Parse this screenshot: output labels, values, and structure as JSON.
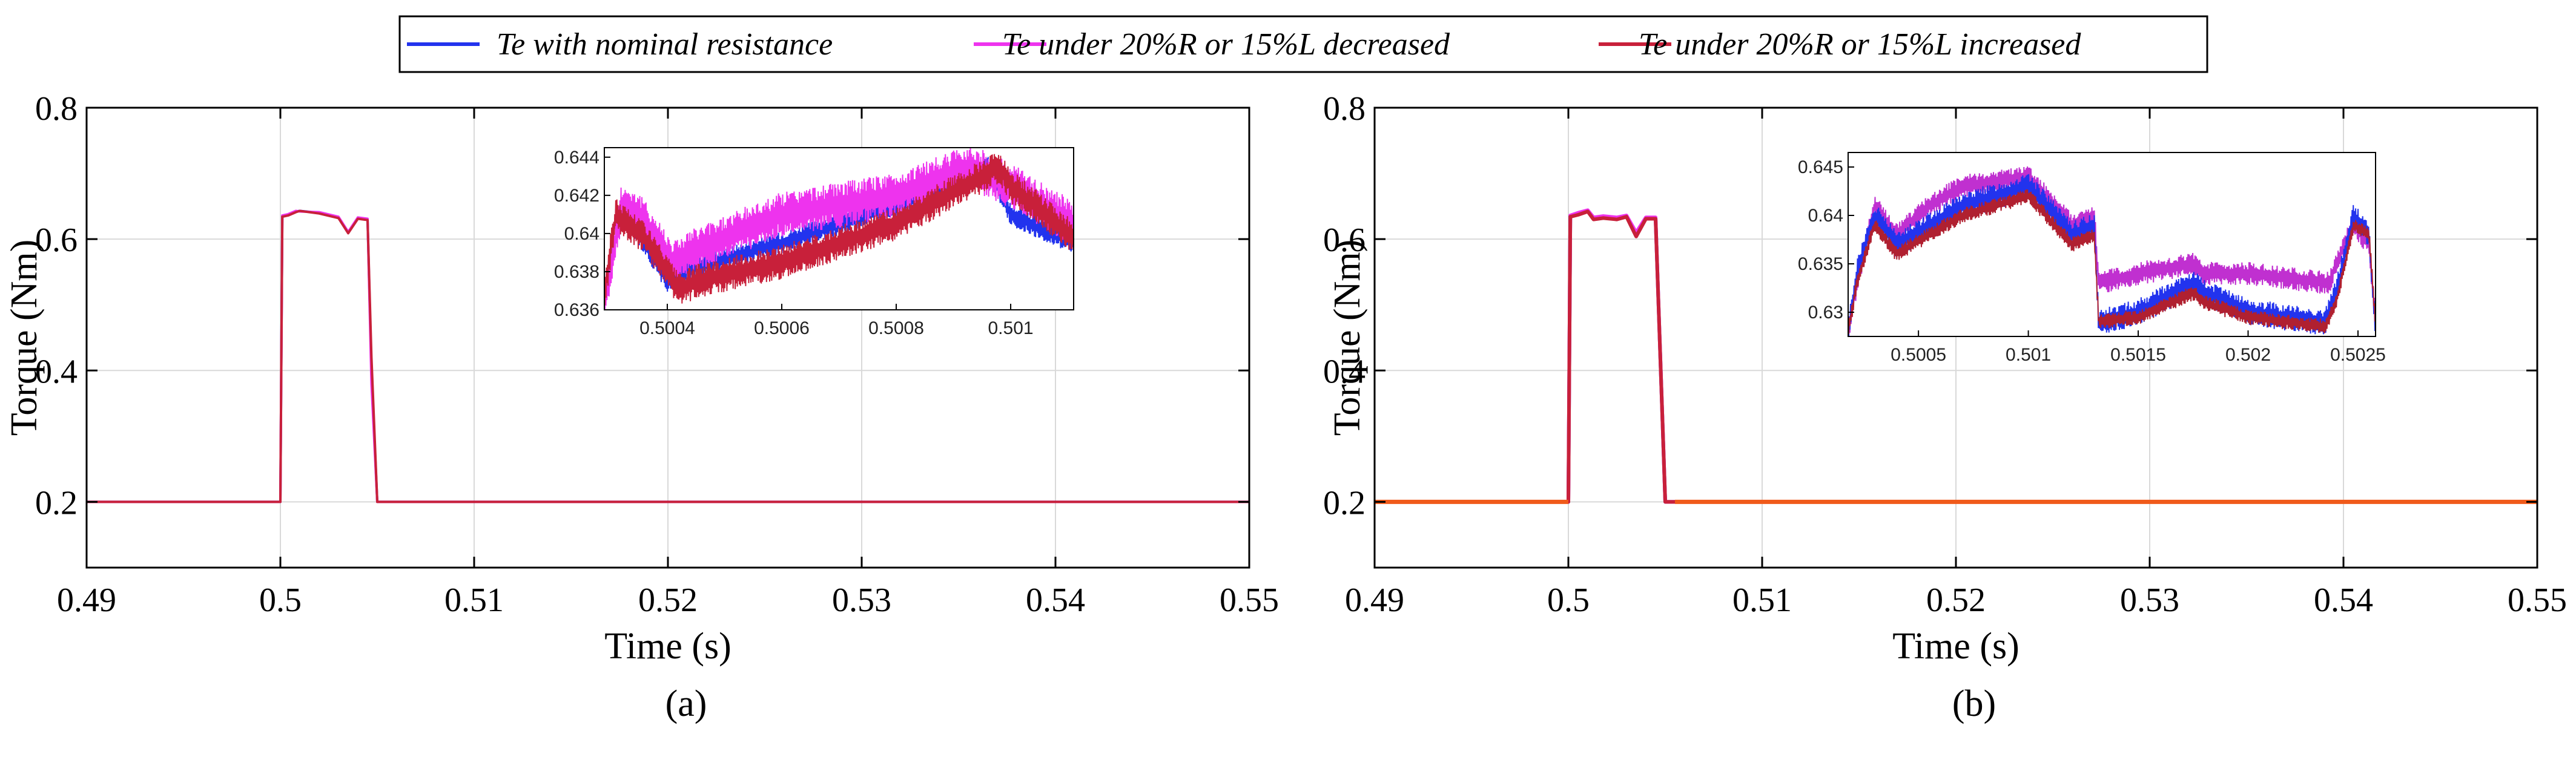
{
  "legend": {
    "items": [
      {
        "label": "Te with nominal resistance",
        "color": "#2233ee"
      },
      {
        "label": "Te under 20%R or 15%L decreased",
        "color": "#ee33ee"
      },
      {
        "label": "Te under 20%R or 15%L increased",
        "color": "#c8203a"
      }
    ]
  },
  "chart_data": [
    {
      "type": "line",
      "caption": "(a)",
      "xlabel": "Time (s)",
      "ylabel": "Torque (Nm)",
      "xlim": [
        0.49,
        0.55
      ],
      "ylim": [
        0.1,
        0.8
      ],
      "xticks": [
        0.49,
        0.5,
        0.51,
        0.52,
        0.53,
        0.54,
        0.55
      ],
      "xtick_labels": [
        "0.49",
        "0.5",
        "0.51",
        "0.52",
        "0.53",
        "0.54",
        "0.55"
      ],
      "yticks": [
        0.2,
        0.4,
        0.6,
        0.8
      ],
      "ytick_labels": [
        "0.2",
        "0.4",
        "0.6",
        "0.8"
      ],
      "grid": true,
      "series": [
        {
          "name": "Te with nominal resistance",
          "color": "#2233ee",
          "x": [
            0.49,
            0.5,
            0.5001,
            0.5004,
            0.5008,
            0.501,
            0.502,
            0.503,
            0.5035,
            0.504,
            0.5045,
            0.5047,
            0.505,
            0.55
          ],
          "y": [
            0.2,
            0.2,
            0.635,
            0.637,
            0.642,
            0.643,
            0.64,
            0.633,
            0.61,
            0.632,
            0.63,
            0.4,
            0.2,
            0.2
          ]
        },
        {
          "name": "Te under 20%R or 15%L decreased",
          "color": "#ee33ee",
          "x": [
            0.49,
            0.5,
            0.5001,
            0.5004,
            0.5008,
            0.501,
            0.502,
            0.503,
            0.5035,
            0.504,
            0.5045,
            0.5047,
            0.505,
            0.55
          ],
          "y": [
            0.2,
            0.2,
            0.636,
            0.638,
            0.643,
            0.642,
            0.641,
            0.634,
            0.611,
            0.633,
            0.631,
            0.38,
            0.2,
            0.2
          ]
        },
        {
          "name": "Te under 20%R or 15%L increased",
          "color": "#c8203a",
          "x": [
            0.49,
            0.5,
            0.5001,
            0.5004,
            0.5008,
            0.501,
            0.502,
            0.503,
            0.5035,
            0.504,
            0.5045,
            0.5047,
            0.505,
            0.55
          ],
          "y": [
            0.2,
            0.2,
            0.634,
            0.636,
            0.641,
            0.643,
            0.639,
            0.632,
            0.609,
            0.631,
            0.629,
            0.42,
            0.2,
            0.2
          ]
        }
      ],
      "inset": {
        "xlim": [
          0.50029,
          0.50111
        ],
        "ylim": [
          0.636,
          0.6445
        ],
        "xticks": [
          0.5004,
          0.5006,
          0.5008,
          0.501
        ],
        "xtick_labels": [
          "0.5004",
          "0.5006",
          "0.5008",
          "0.501"
        ],
        "yticks": [
          0.636,
          0.638,
          0.64,
          0.642,
          0.644
        ],
        "ytick_labels": [
          "0.636",
          "0.638",
          "0.64",
          "0.642",
          "0.644"
        ],
        "series": [
          {
            "name": "Te with nominal resistance",
            "color": "#2233ee",
            "ripple": 0.0006,
            "x": [
              0.50029,
              0.50031,
              0.50034,
              0.5004,
              0.50042,
              0.5006,
              0.5008,
              0.50096,
              0.501,
              0.50111
            ],
            "y": [
              0.6365,
              0.641,
              0.6405,
              0.6375,
              0.638,
              0.6395,
              0.6415,
              0.6435,
              0.641,
              0.6395
            ]
          },
          {
            "name": "Te under 20%R or 15%L decreased",
            "color": "#ee33ee",
            "ripple": 0.0012,
            "x": [
              0.50029,
              0.50032,
              0.50035,
              0.50041,
              0.50044,
              0.5006,
              0.5008,
              0.50093,
              0.501,
              0.50111
            ],
            "y": [
              0.6362,
              0.6415,
              0.641,
              0.6385,
              0.639,
              0.641,
              0.642,
              0.6435,
              0.6425,
              0.6405
            ]
          },
          {
            "name": "Te under 20%R or 15%L increased",
            "color": "#c8203a",
            "ripple": 0.0009,
            "x": [
              0.50029,
              0.50031,
              0.50036,
              0.50042,
              0.50045,
              0.5006,
              0.5008,
              0.50098,
              0.501,
              0.50111
            ],
            "y": [
              0.6368,
              0.641,
              0.6398,
              0.637,
              0.6375,
              0.6385,
              0.6405,
              0.6435,
              0.6425,
              0.6398
            ]
          }
        ]
      }
    },
    {
      "type": "line",
      "caption": "(b)",
      "xlabel": "Time (s)",
      "ylabel": "Torque (Nm)",
      "xlim": [
        0.49,
        0.55
      ],
      "ylim": [
        0.1,
        0.8
      ],
      "xticks": [
        0.49,
        0.5,
        0.51,
        0.52,
        0.53,
        0.54,
        0.55
      ],
      "xtick_labels": [
        "0.49",
        "0.5",
        "0.51",
        "0.52",
        "0.53",
        "0.54",
        "0.55"
      ],
      "yticks": [
        0.2,
        0.4,
        0.6,
        0.8
      ],
      "ytick_labels": [
        "0.2",
        "0.4",
        "0.6",
        "0.8"
      ],
      "grid": true,
      "series": [
        {
          "name": "Te with nominal resistance",
          "color": "#2233ee",
          "x": [
            0.49,
            0.5,
            0.5001,
            0.5005,
            0.501,
            0.5013,
            0.5018,
            0.5025,
            0.503,
            0.5035,
            0.504,
            0.5045,
            0.505,
            0.55
          ],
          "y": [
            0.2,
            0.2,
            0.635,
            0.638,
            0.643,
            0.631,
            0.633,
            0.631,
            0.635,
            0.605,
            0.632,
            0.632,
            0.2,
            0.2
          ]
        },
        {
          "name": "Te under 20%R or 15%L decreased",
          "color": "#ee33ee",
          "x": [
            0.49,
            0.5,
            0.5001,
            0.5005,
            0.501,
            0.5013,
            0.5018,
            0.5025,
            0.503,
            0.5035,
            0.504,
            0.5045,
            0.505,
            0.55
          ],
          "y": [
            0.2,
            0.2,
            0.636,
            0.64,
            0.644,
            0.633,
            0.635,
            0.633,
            0.636,
            0.61,
            0.633,
            0.633,
            0.2,
            0.2
          ]
        },
        {
          "name": "Te under 20%R or 15%L increased",
          "color": "#c8203a",
          "x": [
            0.49,
            0.5,
            0.5001,
            0.5005,
            0.501,
            0.5013,
            0.5018,
            0.5025,
            0.503,
            0.5035,
            0.504,
            0.5045,
            0.505,
            0.55
          ],
          "y": [
            0.2,
            0.2,
            0.634,
            0.637,
            0.642,
            0.63,
            0.632,
            0.63,
            0.634,
            0.604,
            0.631,
            0.631,
            0.2,
            0.2
          ]
        }
      ],
      "inset": {
        "xlim": [
          0.50018,
          0.50258
        ],
        "ylim": [
          0.6275,
          0.6465
        ],
        "xticks": [
          0.5005,
          0.501,
          0.5015,
          0.502,
          0.5025
        ],
        "xtick_labels": [
          "0.5005",
          "0.501",
          "0.5015",
          "0.502",
          "0.5025"
        ],
        "yticks": [
          0.63,
          0.635,
          0.64,
          0.645
        ],
        "ytick_labels": [
          "0.63",
          "0.635",
          "0.64",
          "0.645"
        ],
        "series": [
          {
            "name": "Te under 20%R or 15%L decreased",
            "color": "#c030d0",
            "ripple": 0.0012,
            "x": [
              0.50018,
              0.50022,
              0.5003,
              0.5004,
              0.50055,
              0.5007,
              0.501,
              0.5012,
              0.5013,
              0.50132,
              0.5015,
              0.50175,
              0.5018,
              0.502,
              0.50237,
              0.5024,
              0.50248,
              0.50255,
              0.50258
            ],
            "y": [
              0.628,
              0.633,
              0.641,
              0.638,
              0.641,
              0.643,
              0.644,
              0.639,
              0.64,
              0.633,
              0.634,
              0.635,
              0.634,
              0.634,
              0.633,
              0.635,
              0.639,
              0.637,
              0.629
            ]
          },
          {
            "name": "Te with nominal resistance",
            "color": "#2233ee",
            "ripple": 0.0014,
            "x": [
              0.50018,
              0.50022,
              0.5003,
              0.5004,
              0.50055,
              0.5007,
              0.501,
              0.5012,
              0.5013,
              0.50132,
              0.5015,
              0.50175,
              0.5018,
              0.502,
              0.50235,
              0.5024,
              0.50248,
              0.50255,
              0.50258
            ],
            "y": [
              0.628,
              0.634,
              0.64,
              0.637,
              0.639,
              0.641,
              0.643,
              0.638,
              0.639,
              0.629,
              0.63,
              0.633,
              0.632,
              0.63,
              0.629,
              0.632,
              0.64,
              0.638,
              0.628
            ]
          },
          {
            "name": "Te under 20%R or 15%L increased",
            "color": "#b02030",
            "ripple": 0.0008,
            "x": [
              0.50018,
              0.50022,
              0.5003,
              0.5004,
              0.50055,
              0.5007,
              0.501,
              0.5012,
              0.5013,
              0.50132,
              0.5015,
              0.50175,
              0.5018,
              0.502,
              0.50235,
              0.5024,
              0.50248,
              0.50255,
              0.50258
            ],
            "y": [
              0.628,
              0.633,
              0.639,
              0.636,
              0.638,
              0.64,
              0.642,
              0.637,
              0.638,
              0.629,
              0.6295,
              0.632,
              0.631,
              0.6295,
              0.6285,
              0.631,
              0.639,
              0.638,
              0.629
            ]
          }
        ]
      }
    }
  ]
}
